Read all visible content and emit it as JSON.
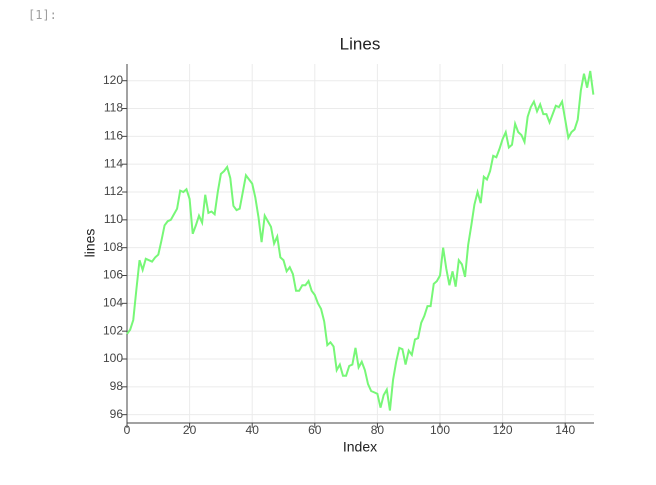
{
  "prompt": "[1]:",
  "chart_data": {
    "type": "line",
    "title": "Lines",
    "xlabel": "Index",
    "ylabel": "lines",
    "x": [
      0,
      1,
      2,
      3,
      4,
      5,
      6,
      7,
      8,
      9,
      10,
      11,
      12,
      13,
      14,
      15,
      16,
      17,
      18,
      19,
      20,
      21,
      22,
      23,
      24,
      25,
      26,
      27,
      28,
      29,
      30,
      31,
      32,
      33,
      34,
      35,
      36,
      37,
      38,
      39,
      40,
      41,
      42,
      43,
      44,
      45,
      46,
      47,
      48,
      49,
      50,
      51,
      52,
      53,
      54,
      55,
      56,
      57,
      58,
      59,
      60,
      61,
      62,
      63,
      64,
      65,
      66,
      67,
      68,
      69,
      70,
      71,
      72,
      73,
      74,
      75,
      76,
      77,
      78,
      79,
      80,
      81,
      82,
      83,
      84,
      85,
      86,
      87,
      88,
      89,
      90,
      91,
      92,
      93,
      94,
      95,
      96,
      97,
      98,
      99,
      100,
      101,
      102,
      103,
      104,
      105,
      106,
      107,
      108,
      109,
      110,
      111,
      112,
      113,
      114,
      115,
      116,
      117,
      118,
      119,
      120,
      121,
      122,
      123,
      124,
      125,
      126,
      127,
      128,
      129,
      130,
      131,
      132,
      133,
      134,
      135,
      136,
      137,
      138,
      139,
      140,
      141,
      142,
      143,
      144,
      145,
      146,
      147,
      148,
      149
    ],
    "series": [
      {
        "color": "#77f777",
        "values": [
          101.8,
          102.1,
          102.8,
          105,
          107.1,
          106.4,
          107.2,
          107.1,
          107,
          107.3,
          107.5,
          108.5,
          109.6,
          109.9,
          110,
          110.4,
          110.8,
          112.1,
          112,
          112.2,
          111.5,
          109,
          109.6,
          110.3,
          109.8,
          111.8,
          110.5,
          110.6,
          110.4,
          112,
          113.3,
          113.5,
          113.8,
          113,
          111,
          110.7,
          110.8,
          112,
          113.2,
          112.9,
          112.6,
          111.6,
          110.2,
          108.4,
          110.3,
          109.9,
          109.5,
          108.3,
          108.8,
          107.3,
          107.1,
          106.3,
          106.6,
          106.1,
          104.9,
          104.9,
          105.3,
          105.3,
          105.6,
          104.9,
          104.6,
          104,
          103.6,
          102.7,
          101,
          101.2,
          100.9,
          99.2,
          99.6,
          98.8,
          98.8,
          99.5,
          99.6,
          100.8,
          99.4,
          99.8,
          99.2,
          98.2,
          97.7,
          97.6,
          97.5,
          96.5,
          97.4,
          97.8,
          96.3,
          98.5,
          99.8,
          100.8,
          100.7,
          99.6,
          100.6,
          100.3,
          101.4,
          101.5,
          102.6,
          103.1,
          103.8,
          103.8,
          105.4,
          105.6,
          106,
          108,
          106.5,
          105.3,
          106.3,
          105.2,
          107.1,
          106.8,
          105.9,
          108.2,
          109.6,
          111.1,
          112,
          111.2,
          113.1,
          112.9,
          113.5,
          114.6,
          114.5,
          115.1,
          115.8,
          116.3,
          115.2,
          115.4,
          116.9,
          116.3,
          116.1,
          115.6,
          117.4,
          118.1,
          118.5,
          117.8,
          118.3,
          117.6,
          117.6,
          117,
          117.6,
          118.2,
          118.1,
          118.5,
          117.2,
          115.9,
          116.3,
          116.5,
          117.2,
          119.3,
          120.5,
          119.5,
          120.7,
          119
        ]
      }
    ],
    "xlim": [
      0,
      149.2
    ],
    "ylim": [
      95.4,
      121.2
    ],
    "xticks": [
      0,
      20,
      40,
      60,
      80,
      100,
      120,
      140
    ],
    "yticks": [
      96,
      98,
      100,
      102,
      104,
      106,
      108,
      110,
      112,
      114,
      116,
      118,
      120
    ],
    "grid": true
  }
}
